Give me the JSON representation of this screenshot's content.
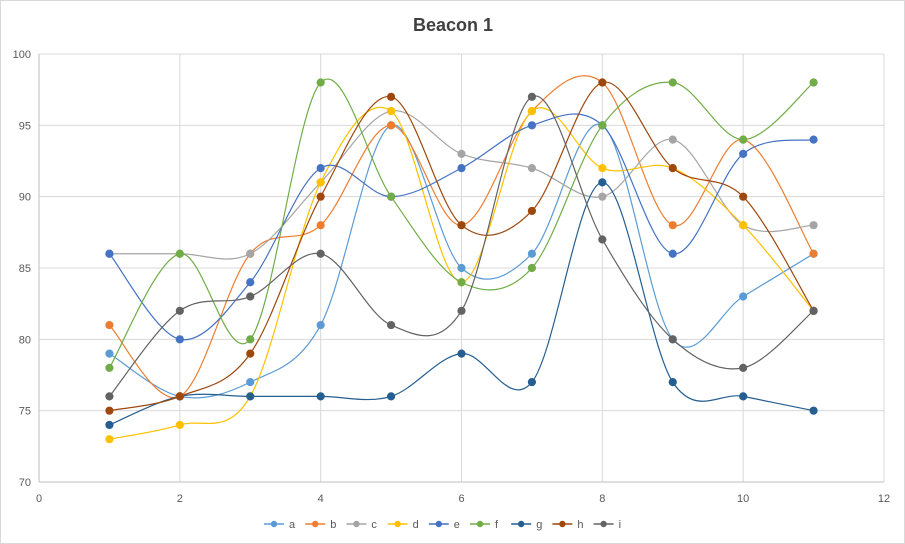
{
  "chart_data": {
    "type": "scatter",
    "title": "Beacon 1",
    "xlabel": "",
    "ylabel": "",
    "xlim": [
      0,
      12
    ],
    "ylim": [
      70,
      100
    ],
    "xticks": [
      0,
      2,
      4,
      6,
      8,
      10,
      12
    ],
    "yticks": [
      70,
      75,
      80,
      85,
      90,
      95,
      100
    ],
    "grid": true,
    "smooth_lines": true,
    "legend_position": "bottom",
    "x": [
      1,
      2,
      3,
      4,
      5,
      6,
      7,
      8,
      9,
      10,
      11
    ],
    "series": [
      {
        "name": "a",
        "color": "#5B9BD5",
        "values": [
          79,
          76,
          77,
          81,
          95,
          85,
          86,
          95,
          80,
          83,
          86
        ]
      },
      {
        "name": "b",
        "color": "#ED7D31",
        "values": [
          81,
          76,
          86,
          88,
          95,
          88,
          96,
          98,
          88,
          94,
          86
        ]
      },
      {
        "name": "c",
        "color": "#A5A5A5",
        "values": [
          86,
          86,
          86,
          91,
          96,
          93,
          92,
          90,
          94,
          88,
          88
        ]
      },
      {
        "name": "d",
        "color": "#FFC000",
        "values": [
          73,
          74,
          76,
          91,
          96,
          84,
          96,
          92,
          92,
          88,
          82
        ]
      },
      {
        "name": "e",
        "color": "#4472C4",
        "values": [
          86,
          80,
          84,
          92,
          90,
          92,
          95,
          95,
          86,
          93,
          94
        ]
      },
      {
        "name": "f",
        "color": "#70AD47",
        "values": [
          78,
          86,
          80,
          98,
          90,
          84,
          85,
          95,
          98,
          94,
          98
        ]
      },
      {
        "name": "g",
        "color": "#255E91",
        "values": [
          74,
          76,
          76,
          76,
          76,
          79,
          77,
          91,
          77,
          76,
          75
        ]
      },
      {
        "name": "h",
        "color": "#9E480E",
        "values": [
          75,
          76,
          79,
          90,
          97,
          88,
          89,
          98,
          92,
          90,
          82
        ]
      },
      {
        "name": "i",
        "color": "#636363",
        "values": [
          76,
          82,
          83,
          86,
          81,
          82,
          97,
          87,
          80,
          78,
          82
        ]
      }
    ]
  }
}
